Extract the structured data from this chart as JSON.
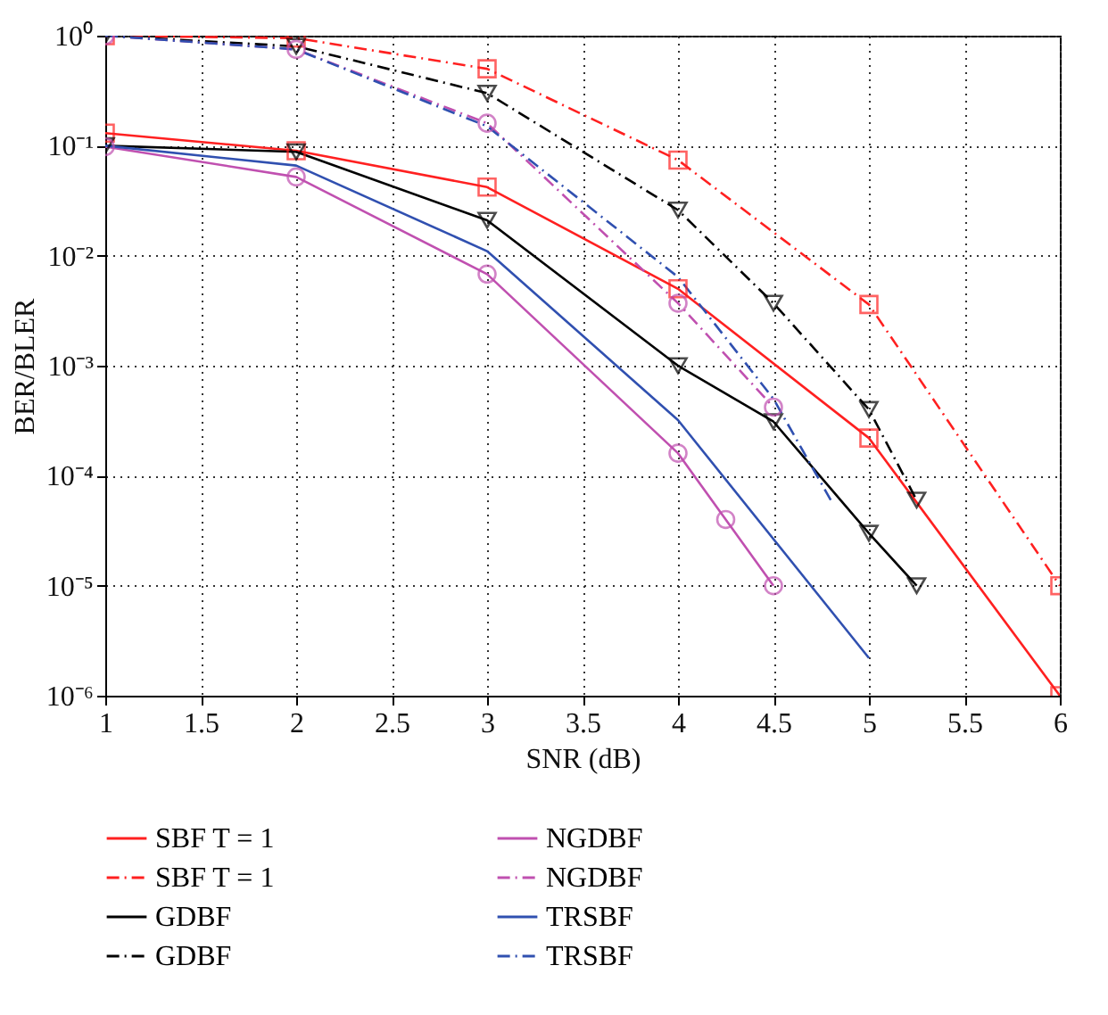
{
  "chart_data": {
    "type": "line",
    "xlabel": "SNR (dB)",
    "ylabel": "BER/BLER",
    "log": "y",
    "grid": true,
    "legend": "bottom",
    "xlim": [
      1,
      6
    ],
    "xticks": [
      1,
      1.5,
      2,
      2.5,
      3,
      3.5,
      4,
      4.5,
      5,
      5.5,
      6
    ],
    "ylim": [
      1e-06,
      1
    ],
    "yticks": [
      {
        "value": 1,
        "label": "10⁰"
      },
      {
        "value": 0.1,
        "label": "10⁻¹"
      },
      {
        "value": 0.01,
        "label": "10⁻²"
      },
      {
        "value": 0.001,
        "label": "10⁻³"
      },
      {
        "value": 0.0001,
        "label": "10⁻⁴"
      },
      {
        "value": 1e-05,
        "label": "10⁻⁵"
      },
      {
        "value": 1e-06,
        "label": "10⁻⁶"
      }
    ],
    "series": [
      {
        "name": "SBF T = 1",
        "color": "#ff2020",
        "marker": "square",
        "line_style": "solid",
        "x": [
          1,
          2,
          3,
          4,
          5,
          6
        ],
        "values": [
          0.13,
          0.09,
          0.042,
          0.005,
          0.00022,
          1e-06
        ]
      },
      {
        "name": "SBF T = 1",
        "color": "#ff2020",
        "marker": "square",
        "line_style": "dashed",
        "x": [
          1,
          2,
          3,
          4,
          5,
          6
        ],
        "values": [
          1,
          0.95,
          0.5,
          0.074,
          0.0036,
          1e-05
        ]
      },
      {
        "name": "GDBF",
        "color": "#000000",
        "marker": "triangle",
        "line_style": "solid",
        "x": [
          1,
          2,
          3,
          4,
          4.5,
          5,
          5.25
        ],
        "values": [
          0.1,
          0.088,
          0.021,
          0.001,
          0.00031,
          3e-05,
          1e-05
        ]
      },
      {
        "name": "GDBF",
        "color": "#000000",
        "marker": "triangle",
        "line_style": "dashed",
        "x": [
          1,
          2,
          3,
          4,
          4.5,
          5,
          5.25
        ],
        "values": [
          1,
          0.8,
          0.3,
          0.026,
          0.0037,
          0.0004,
          6e-05
        ]
      },
      {
        "name": "NGDBF",
        "color": "#c050b0",
        "marker": "circle",
        "line_style": "solid",
        "x": [
          1,
          2,
          3,
          4,
          4.25,
          4.5
        ],
        "values": [
          0.098,
          0.052,
          0.0068,
          0.00016,
          4e-05,
          1e-05
        ]
      },
      {
        "name": "NGDBF",
        "color": "#c050b0",
        "marker": "circle",
        "line_style": "dashed",
        "x": [
          1,
          2,
          3,
          4,
          4.5
        ],
        "values": [
          1,
          0.75,
          0.16,
          0.0037,
          0.00042
        ]
      },
      {
        "name": "TRSBF",
        "color": "#3050b0",
        "marker": "none",
        "line_style": "solid",
        "x": [
          1,
          2,
          3,
          4,
          5
        ],
        "values": [
          0.1,
          0.066,
          0.011,
          0.00032,
          2.2e-06
        ]
      },
      {
        "name": "TRSBF",
        "color": "#3050b0",
        "marker": "none",
        "line_style": "dashed",
        "x": [
          1,
          2,
          3,
          4,
          4.5,
          4.8
        ],
        "values": [
          1,
          0.75,
          0.15,
          0.0064,
          0.0005,
          6e-05
        ]
      }
    ]
  }
}
